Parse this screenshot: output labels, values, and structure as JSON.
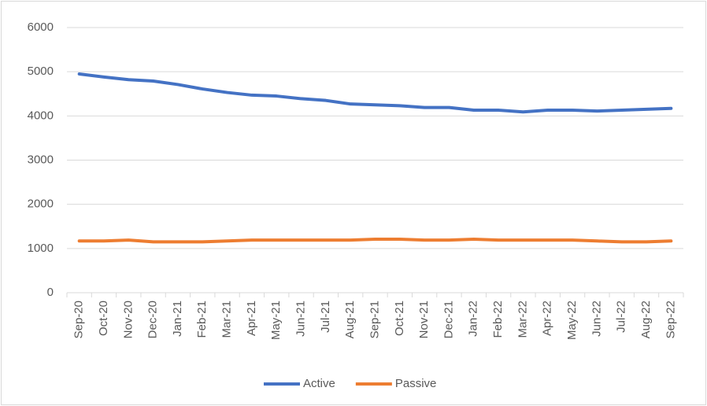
{
  "chart_data": {
    "type": "line",
    "categories": [
      "Sep-20",
      "Oct-20",
      "Nov-20",
      "Dec-20",
      "Jan-21",
      "Feb-21",
      "Mar-21",
      "Apr-21",
      "May-21",
      "Jun-21",
      "Jul-21",
      "Aug-21",
      "Sep-21",
      "Oct-21",
      "Nov-21",
      "Dec-21",
      "Jan-22",
      "Feb-22",
      "Mar-22",
      "Apr-22",
      "May-22",
      "Jun-22",
      "Jul-22",
      "Aug-22",
      "Sep-22"
    ],
    "series": [
      {
        "name": "Active",
        "color": "#4472c4",
        "values": [
          4950,
          4880,
          4820,
          4790,
          4710,
          4610,
          4530,
          4470,
          4450,
          4390,
          4350,
          4270,
          4250,
          4230,
          4190,
          4190,
          4130,
          4130,
          4090,
          4130,
          4130,
          4110,
          4130,
          4150,
          4170
        ]
      },
      {
        "name": "Passive",
        "color": "#ed7d31",
        "values": [
          1170,
          1170,
          1190,
          1150,
          1150,
          1150,
          1170,
          1190,
          1190,
          1190,
          1190,
          1190,
          1210,
          1210,
          1190,
          1190,
          1210,
          1190,
          1190,
          1190,
          1190,
          1170,
          1150,
          1150,
          1170
        ]
      }
    ],
    "ylim": [
      0,
      6000
    ],
    "yticks": [
      0,
      1000,
      2000,
      3000,
      4000,
      5000,
      6000
    ],
    "grid": true,
    "legend": "bottom"
  }
}
